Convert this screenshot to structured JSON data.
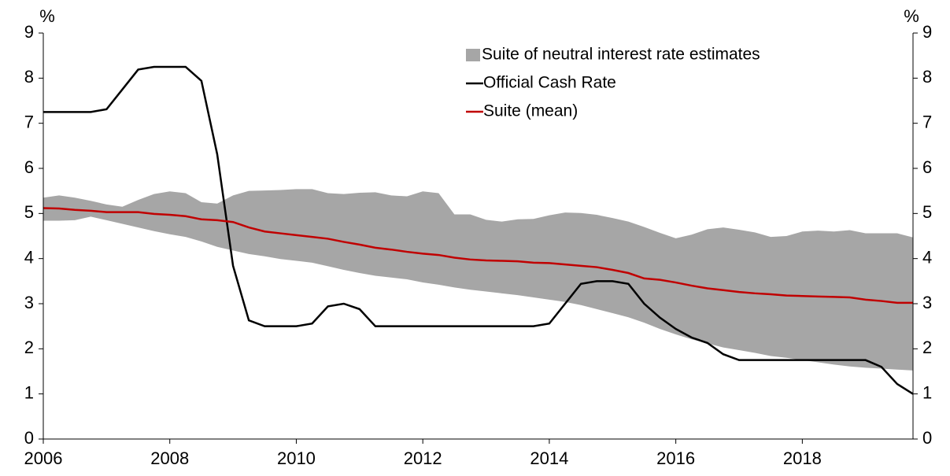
{
  "chart_data": {
    "type": "line",
    "ylabel": "%",
    "y2label": "%",
    "x": [
      2006,
      2006.25,
      2006.5,
      2006.75,
      2007,
      2007.25,
      2007.5,
      2007.75,
      2008,
      2008.25,
      2008.5,
      2008.75,
      2009,
      2009.25,
      2009.5,
      2009.75,
      2010,
      2010.25,
      2010.5,
      2010.75,
      2011,
      2011.25,
      2011.5,
      2011.75,
      2012,
      2012.25,
      2012.5,
      2012.75,
      2013,
      2013.25,
      2013.5,
      2013.75,
      2014,
      2014.25,
      2014.5,
      2014.75,
      2015,
      2015.25,
      2015.5,
      2015.75,
      2016,
      2016.25,
      2016.5,
      2016.75,
      2017,
      2017.25,
      2017.5,
      2017.75,
      2018,
      2018.25,
      2018.5,
      2018.75,
      2019,
      2019.25,
      2019.5,
      2019.75
    ],
    "band": {
      "name": "Suite of neutral interest rate estimates",
      "color": "#a6a6a6",
      "upper": [
        5.35,
        5.4,
        5.35,
        5.28,
        5.2,
        5.15,
        5.3,
        5.43,
        5.49,
        5.45,
        5.25,
        5.22,
        5.4,
        5.5,
        5.51,
        5.52,
        5.54,
        5.54,
        5.45,
        5.43,
        5.46,
        5.47,
        5.4,
        5.38,
        5.49,
        5.45,
        4.98,
        4.98,
        4.86,
        4.82,
        4.87,
        4.88,
        4.96,
        5.02,
        5.01,
        4.97,
        4.9,
        4.82,
        4.7,
        4.57,
        4.45,
        4.53,
        4.65,
        4.69,
        4.64,
        4.58,
        4.48,
        4.5,
        4.6,
        4.62,
        4.6,
        4.63,
        4.56,
        4.56,
        4.56,
        4.47
      ],
      "lower": [
        4.84,
        4.84,
        4.85,
        4.93,
        4.85,
        4.77,
        4.69,
        4.61,
        4.54,
        4.48,
        4.38,
        4.26,
        4.18,
        4.1,
        4.05,
        3.99,
        3.95,
        3.91,
        3.83,
        3.75,
        3.68,
        3.62,
        3.58,
        3.54,
        3.47,
        3.42,
        3.36,
        3.31,
        3.27,
        3.23,
        3.19,
        3.14,
        3.09,
        3.04,
        2.97,
        2.88,
        2.79,
        2.7,
        2.58,
        2.44,
        2.32,
        2.21,
        2.12,
        2.03,
        1.97,
        1.91,
        1.84,
        1.8,
        1.75,
        1.7,
        1.65,
        1.61,
        1.58,
        1.56,
        1.54,
        1.52
      ]
    },
    "series": [
      {
        "name": "Official Cash Rate",
        "color": "#000000",
        "values": [
          7.25,
          7.25,
          7.25,
          7.25,
          7.31,
          7.75,
          8.19,
          8.25,
          8.25,
          8.25,
          7.94,
          6.31,
          3.84,
          2.63,
          2.5,
          2.5,
          2.5,
          2.56,
          2.94,
          3.0,
          2.88,
          2.5,
          2.5,
          2.5,
          2.5,
          2.5,
          2.5,
          2.5,
          2.5,
          2.5,
          2.5,
          2.5,
          2.56,
          3.0,
          3.44,
          3.5,
          3.5,
          3.44,
          3.0,
          2.69,
          2.44,
          2.25,
          2.13,
          1.88,
          1.75,
          1.75,
          1.75,
          1.75,
          1.75,
          1.75,
          1.75,
          1.75,
          1.75,
          1.6,
          1.22,
          1.0
        ]
      },
      {
        "name": "Suite (mean)",
        "color": "#c00000",
        "values": [
          5.12,
          5.11,
          5.08,
          5.06,
          5.03,
          5.03,
          5.03,
          4.99,
          4.97,
          4.94,
          4.87,
          4.85,
          4.81,
          4.69,
          4.6,
          4.56,
          4.52,
          4.48,
          4.44,
          4.37,
          4.31,
          4.24,
          4.2,
          4.15,
          4.11,
          4.08,
          4.02,
          3.98,
          3.96,
          3.95,
          3.94,
          3.91,
          3.9,
          3.87,
          3.84,
          3.81,
          3.75,
          3.68,
          3.56,
          3.53,
          3.47,
          3.4,
          3.34,
          3.3,
          3.26,
          3.23,
          3.21,
          3.18,
          3.17,
          3.16,
          3.15,
          3.14,
          3.09,
          3.06,
          3.02,
          3.02
        ]
      }
    ],
    "xlim": [
      2006,
      2019.75
    ],
    "xticks": [
      2006,
      2008,
      2010,
      2012,
      2014,
      2016,
      2018
    ],
    "ylim": [
      0,
      9
    ],
    "yticks": [
      0,
      1,
      2,
      3,
      4,
      5,
      6,
      7,
      8,
      9
    ],
    "y2lim": [
      0,
      9
    ],
    "y2ticks": [
      0,
      1,
      2,
      3,
      4,
      5,
      6,
      7,
      8,
      9
    ],
    "legend": "upper right",
    "grid": false
  }
}
